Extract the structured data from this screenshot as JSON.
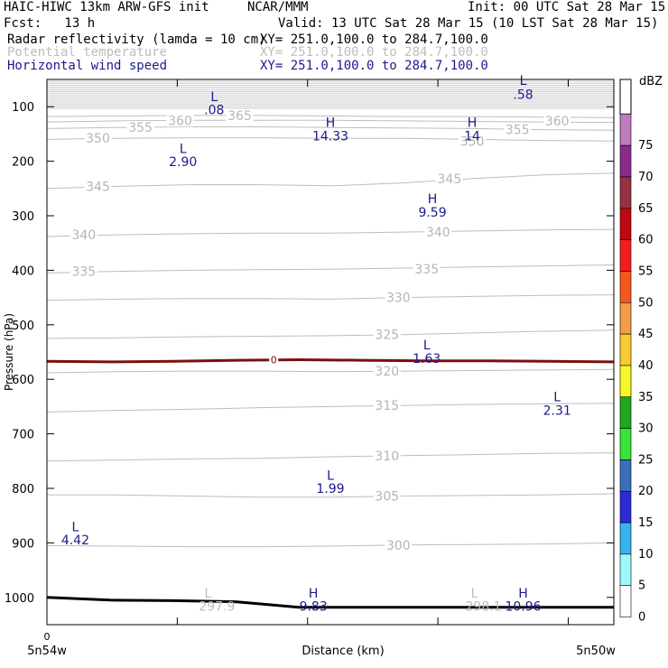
{
  "header": {
    "model": "HAIC-HIWC 13km ARW-GFS init",
    "org": "NCAR/MMM",
    "init": "Init: 00 UTC Sat 28 Mar 15",
    "fcst": "Fcst:   13 h",
    "valid": "Valid: 13 UTC Sat 28 Mar 15 (10 LST Sat 28 Mar 15)",
    "fields": [
      {
        "name": "Radar reflectivity (lamda = 10 cm)",
        "xy": "XY= 251.0,100.0 to 284.7,100.0",
        "color": "#000000"
      },
      {
        "name": "Potential temperature",
        "xy": "XY= 251.0,100.0 to 284.7,100.0",
        "color": "#bdbdbd"
      },
      {
        "name": "Horizontal wind speed",
        "xy": "XY= 251.0,100.0 to 284.7,100.0",
        "color": "#1a1a8c"
      }
    ]
  },
  "chart_data": {
    "type": "cross-section",
    "xlabel": "Distance (km)",
    "ylabel": "Pressure (hPa)",
    "x_tick_labels": {
      "left": "5n54w",
      "right": "5n50w",
      "origin": "0"
    },
    "yticks": [
      100,
      200,
      300,
      400,
      500,
      600,
      700,
      800,
      900,
      1000
    ],
    "ylim": [
      1050,
      50
    ],
    "xlim": [
      0,
      1
    ],
    "theta_contours": [
      {
        "value": 300,
        "label": "300",
        "p": [
          905,
          906,
          907,
          907,
          906,
          904,
          903,
          902,
          900
        ],
        "label_x": 0.62
      },
      {
        "value": 305,
        "label": "305",
        "p": [
          812,
          812,
          814,
          816,
          816,
          814,
          813,
          812,
          810
        ],
        "label_x": 0.6
      },
      {
        "value": 310,
        "label": "310",
        "p": [
          750,
          748,
          746,
          745,
          742,
          740,
          738,
          736,
          735
        ],
        "label_x": 0.6
      },
      {
        "value": 315,
        "label": "315",
        "p": [
          660,
          657,
          655,
          652,
          650,
          648,
          646,
          645,
          644
        ],
        "label_x": 0.6
      },
      {
        "value": 320,
        "label": "320",
        "p": [
          588,
          586,
          585,
          585,
          586,
          585,
          584,
          583,
          582
        ],
        "label_x": 0.6
      },
      {
        "value": 325,
        "label": "325",
        "p": [
          525,
          524,
          522,
          521,
          520,
          518,
          515,
          512,
          510
        ],
        "label_x": 0.6
      },
      {
        "value": 330,
        "label": "330",
        "p": [
          455,
          453,
          452,
          452,
          453,
          450,
          448,
          446,
          445
        ],
        "label_x": 0.62
      },
      {
        "value": 335,
        "label": "335",
        "p": [
          405,
          402,
          400,
          399,
          398,
          396,
          394,
          392,
          390
        ],
        "label_x": 0.065
      },
      {
        "value": 335,
        "label": "335",
        "p": null,
        "label_x": 0.67,
        "label_p": 398
      },
      {
        "value": 340,
        "label": "340",
        "p": [
          338,
          335,
          333,
          332,
          332,
          330,
          328,
          326,
          325
        ],
        "label_x": 0.065
      },
      {
        "value": 340,
        "label": "340",
        "p": null,
        "label_x": 0.69,
        "label_p": 330
      },
      {
        "value": 345,
        "label": "345",
        "p": [
          250,
          246,
          243,
          243,
          245,
          240,
          232,
          225,
          222
        ],
        "label_x": 0.09
      },
      {
        "value": 345,
        "label": "345",
        "p": null,
        "label_x": 0.71,
        "label_p": 232
      },
      {
        "value": 350,
        "label": "350",
        "p": [
          160,
          158,
          157,
          157,
          158,
          158,
          160,
          162,
          163
        ],
        "label_x": 0.09
      },
      {
        "value": 350,
        "label": "350",
        "p": null,
        "label_x": 0.75,
        "label_p": 163
      },
      {
        "value": 355,
        "label": "355",
        "p": [
          140,
          138,
          137,
          137,
          138,
          139,
          140,
          142,
          143
        ],
        "label_x": 0.165
      },
      {
        "value": 355,
        "label": "355",
        "p": null,
        "label_x": 0.83,
        "label_p": 142
      },
      {
        "value": 360,
        "label": "360",
        "p": [
          128,
          126,
          125,
          125,
          125,
          126,
          127,
          128,
          129
        ],
        "label_x": 0.235
      },
      {
        "value": 360,
        "label": "360",
        "p": null,
        "label_x": 0.9,
        "label_p": 126
      },
      {
        "value": 365,
        "label": "365",
        "p": [
          118,
          117,
          116,
          116,
          117,
          118,
          118,
          119,
          120
        ],
        "label_x": 0.34
      }
    ],
    "wind_extrema": [
      {
        "type": "L",
        "value": ".08",
        "x": 0.295,
        "p_letter": 80,
        "p_value": 104
      },
      {
        "type": "L",
        "value": ".58",
        "x": 0.84,
        "p_letter": 50,
        "p_value": 76
      },
      {
        "type": "H",
        "value": "14.33",
        "x": 0.5,
        "p_letter": 127,
        "p_value": 152
      },
      {
        "type": "H",
        "value": "14",
        "x": 0.75,
        "p_letter": 127,
        "p_value": 152
      },
      {
        "type": "L",
        "value": "2.90",
        "x": 0.24,
        "p_letter": 175,
        "p_value": 199
      },
      {
        "type": "H",
        "value": "9.59",
        "x": 0.68,
        "p_letter": 267,
        "p_value": 292
      },
      {
        "type": "L",
        "value": "1.63",
        "x": 0.67,
        "p_letter": 535,
        "p_value": 560
      },
      {
        "type": "L",
        "value": "2.31",
        "x": 0.9,
        "p_letter": 630,
        "p_value": 655
      },
      {
        "type": "L",
        "value": "1.99",
        "x": 0.5,
        "p_letter": 774,
        "p_value": 798
      },
      {
        "type": "L",
        "value": "4.42",
        "x": 0.05,
        "p_letter": 869,
        "p_value": 893
      },
      {
        "type": "H",
        "value": "9.83",
        "x": 0.47,
        "p_letter": 990,
        "p_value": 1014
      },
      {
        "type": "H",
        "value": "10.96",
        "x": 0.84,
        "p_letter": 990,
        "p_value": 1014
      }
    ],
    "theta_extrema": [
      {
        "type": "L",
        "value": "297.9",
        "x": 0.3,
        "p_letter": 990,
        "p_value": 1014
      },
      {
        "type": "L",
        "value": "298.1",
        "x": 0.77,
        "p_letter": 990,
        "p_value": 1014
      }
    ],
    "freezing_level": {
      "label": "0",
      "p": [
        567,
        568,
        567,
        565,
        564,
        565,
        566,
        566,
        567,
        568
      ],
      "label_x": 0.4,
      "color": "#7a1010"
    },
    "terrain_p": [
      1000,
      1005,
      1006,
      1008,
      1018,
      1018,
      1018,
      1018,
      1018,
      1018
    ],
    "colorbar": {
      "title": "dBZ",
      "levels": [
        "0",
        "5",
        "10",
        "15",
        "20",
        "25",
        "30",
        "35",
        "40",
        "45",
        "50",
        "55",
        "60",
        "65",
        "70",
        "75"
      ],
      "colors": [
        "#ffffff",
        "#9ff9f9",
        "#36b3ef",
        "#2b2bd6",
        "#3a70b7",
        "#37e437",
        "#20a820",
        "#f7f72a",
        "#f8ca33",
        "#f59c4c",
        "#f5581c",
        "#f51c1c",
        "#c1070f",
        "#943142",
        "#8c2a8c",
        "#bf7cbf"
      ]
    }
  }
}
